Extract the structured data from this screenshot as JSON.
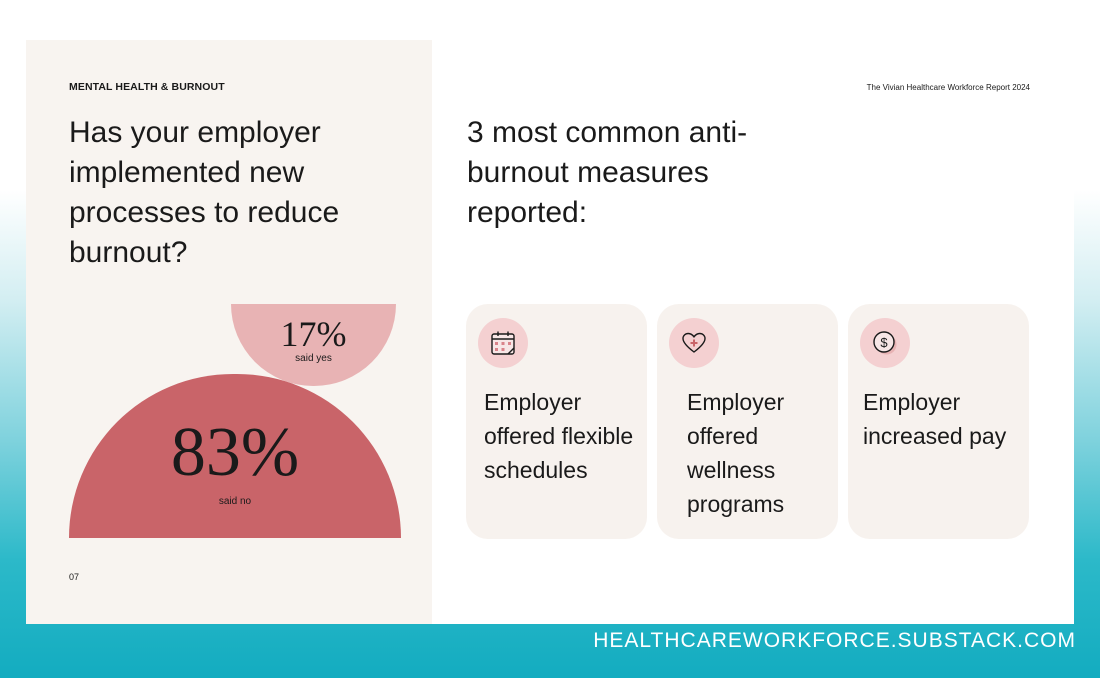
{
  "section_label": "MENTAL HEALTH  & BURNOUT",
  "report_title": "The Vivian Healthcare Workforce Report 2024",
  "question": "Has your employer implemented new processes to reduce burnout?",
  "page_number": "07",
  "right_heading": "3 most common anti-burnout measures reported:",
  "chart_data": {
    "type": "pie",
    "title": "Has your employer implemented new processes to reduce burnout?",
    "categories": [
      "said yes",
      "said no"
    ],
    "values": [
      17,
      83
    ],
    "display": [
      "17%",
      "83%"
    ],
    "colors": [
      "#e8b3b4",
      "#c96469"
    ]
  },
  "measures": [
    {
      "label": "Employer offered flexible schedules",
      "icon": "calendar-icon"
    },
    {
      "label": "Employer offered wellness programs",
      "icon": "heart-plus-icon"
    },
    {
      "label": "Employer increased pay",
      "icon": "dollar-coin-icon"
    }
  ],
  "footer_url": "HEALTHCAREWORKFORCE.SUBSTACK.COM",
  "colors": {
    "accent_dark": "#c96469",
    "accent_light": "#e8b3b4",
    "icon_bg": "#f4d0d1",
    "panel_bg": "#f8f4f0"
  }
}
